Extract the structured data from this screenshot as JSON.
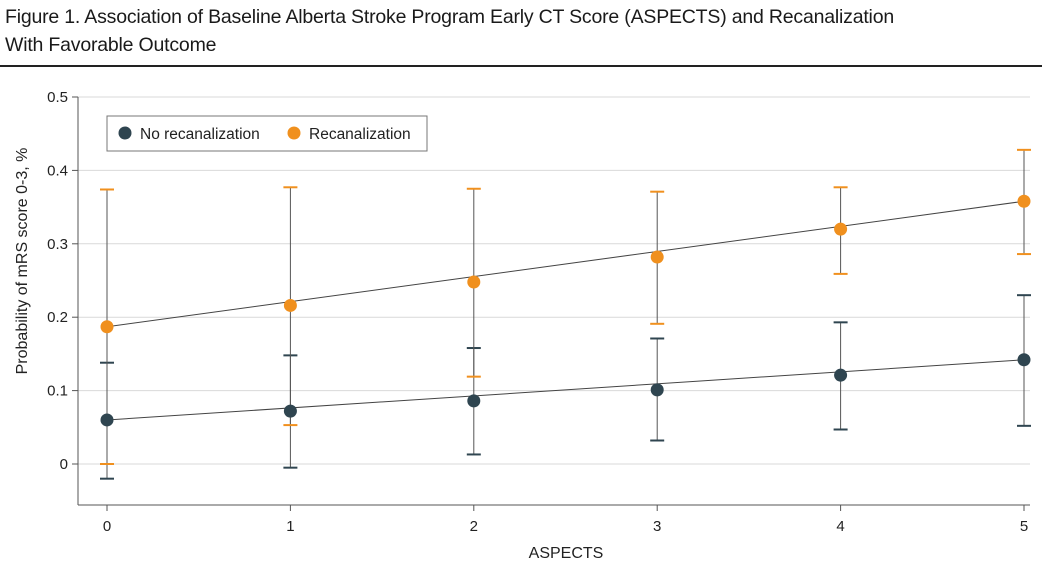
{
  "figure": {
    "title_line1": "Figure 1. Association of Baseline Alberta Stroke Program Early CT Score (ASPECTS) and Recanalization",
    "title_line2": "With Favorable Outcome"
  },
  "colors": {
    "no_recanalization": "#2f4550",
    "recanalization": "#f0901e",
    "fit_line": "#444444",
    "grid": "#d9d9d9",
    "axis": "#555555"
  },
  "chart_data": {
    "type": "scatter",
    "xlabel": "ASPECTS",
    "ylabel": "Probability of mRS score 0-3, %",
    "xlim": [
      0,
      5
    ],
    "ylim": [
      -0.05,
      0.5
    ],
    "x": [
      0,
      1,
      2,
      3,
      4,
      5
    ],
    "x_tick_labels": [
      "0",
      "1",
      "2",
      "3",
      "4",
      "5"
    ],
    "y_ticks": [
      0,
      0.1,
      0.2,
      0.3,
      0.4,
      0.5
    ],
    "y_tick_labels": [
      "0",
      "0.1",
      "0.2",
      "0.3",
      "0.4",
      "0.5"
    ],
    "grid": true,
    "legend_position": "top-left",
    "series": [
      {
        "name": "No recanalization",
        "color": "#2f4550",
        "values": [
          0.06,
          0.072,
          0.086,
          0.101,
          0.121,
          0.142
        ],
        "ci_lower": [
          -0.02,
          -0.005,
          0.013,
          0.032,
          0.047,
          0.052
        ],
        "ci_upper": [
          0.138,
          0.148,
          0.158,
          0.171,
          0.193,
          0.23
        ]
      },
      {
        "name": "Recanalization",
        "color": "#f0901e",
        "values": [
          0.187,
          0.216,
          0.248,
          0.282,
          0.32,
          0.358
        ],
        "ci_lower": [
          0.0,
          0.053,
          0.119,
          0.191,
          0.259,
          0.286
        ],
        "ci_upper": [
          0.374,
          0.377,
          0.375,
          0.371,
          0.377,
          0.428
        ]
      }
    ]
  }
}
